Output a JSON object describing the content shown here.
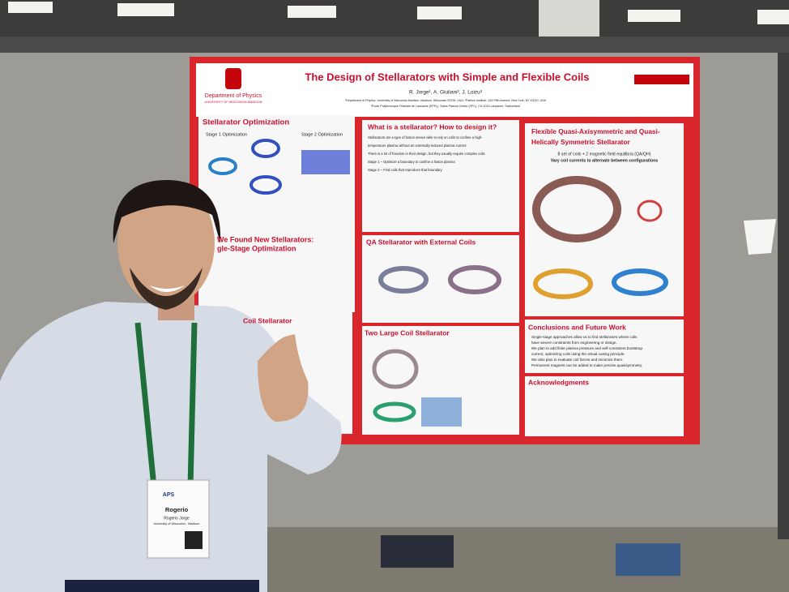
{
  "poster": {
    "title": "The Design of Stellarators with Simple and Flexible Coils",
    "authors": "R. Jorge¹, A. Giuliani², J. Loizu³",
    "affiliations": [
      "¹Department of Physics, University of Wisconsin-Madison, Madison, Wisconsin 53706, USA; ²Flatiron Institute, 162 Fifth Avenue, New York, NY 10010, USA",
      "³École Polytechnique Fédérale de Lausanne (EPFL), Swiss Plasma Center (SPC), CH-1015 Lausanne, Switzerland"
    ],
    "department": "Department of Physics",
    "university": "UNIVERSITY OF WISCONSIN-MADISON",
    "sections": {
      "optimization": {
        "heading": "Stellarator Optimization",
        "stage1": "Stage 1 Optimization",
        "stage2": "Stage 2 Optimization"
      },
      "what": {
        "heading": "What is a stellarator? How to design it?",
        "lines": [
          "Stellarators are a type of fusion device able to rely on coils to confine a high-",
          "temperature plasma without an externally-induced plasma current",
          "There is a lot of freedom in their design, but they usually require complex coils",
          "Stage 1 – Optimize a boundary to confine a fusion plasma",
          "Stage 2 – Find coils that reproduce that boundary"
        ]
      },
      "flexible": {
        "heading": [
          "Flexible Quasi-Axisymmetric and Quasi-",
          "Helically Symmetric Stellarator"
        ],
        "lines": [
          "8 set of coils + 2 magnetic field equilibria (QA/QH)",
          "Vary coil currents to alternate between configurations"
        ]
      },
      "new": {
        "heading": [
          "We Found New Stellarators:",
          "gle-Stage Optimization"
        ]
      },
      "qa": {
        "heading": "QA Stellarator with External Coils"
      },
      "coil": {
        "heading": "Coil Stellarator"
      },
      "two": {
        "heading": "Two Large Coil Stellarator"
      },
      "conclusions": {
        "heading": "Conclusions and Future Work",
        "lines": [
          "Single-stage approaches allow us to find stellarators where coils",
          "have severe constraints from engineering or design.",
          "We plan to add finite plasma pressure and self-consistent bootstrap",
          "current, optimizing coils using the virtual casing principle.",
          "We also plan to evaluate coil forces and minimize them.",
          "Permanent magnets can be added to make precise quasisymmetry."
        ]
      },
      "acknowledgments": {
        "heading": "Acknowledgments"
      }
    }
  },
  "badge": {
    "org": "APS",
    "first_name": "Rogerio",
    "full_name": "Rogerio Jorge",
    "institution": "University of Wisconsin - Madison"
  }
}
